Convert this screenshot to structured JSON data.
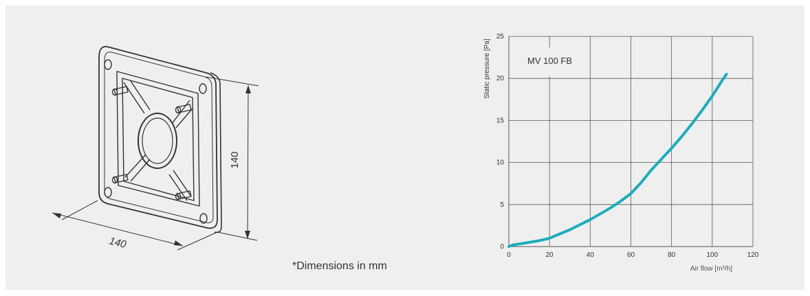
{
  "drawing": {
    "width_label": "140",
    "height_label": "140"
  },
  "note": "*Dimensions in mm",
  "colors": {
    "background": "#efefef",
    "curve": "#1aaebd",
    "grid": "#555555",
    "text": "#333333"
  },
  "chart_data": {
    "type": "line",
    "title": "MV 100 FB",
    "xlabel": "Air flow [m³/h]",
    "ylabel": "Static pressure [Pa]",
    "xlim": [
      0,
      120
    ],
    "ylim": [
      0,
      25
    ],
    "x_ticks": [
      0,
      20,
      40,
      60,
      80,
      100,
      120
    ],
    "y_ticks": [
      0,
      5,
      10,
      15,
      20,
      25
    ],
    "grid": true,
    "series": [
      {
        "x": [
          0,
          2,
          5,
          10,
          15,
          20,
          25,
          30,
          35,
          40,
          45,
          50,
          55,
          60,
          65,
          70,
          75,
          80,
          85,
          90,
          95,
          100,
          105,
          107
        ],
        "y": [
          0,
          0.2,
          0.3,
          0.5,
          0.7,
          1.0,
          1.5,
          2.0,
          2.6,
          3.2,
          3.9,
          4.6,
          5.4,
          6.3,
          7.6,
          9.1,
          10.4,
          11.7,
          13.1,
          14.6,
          16.2,
          17.9,
          19.8,
          20.5
        ]
      }
    ]
  }
}
